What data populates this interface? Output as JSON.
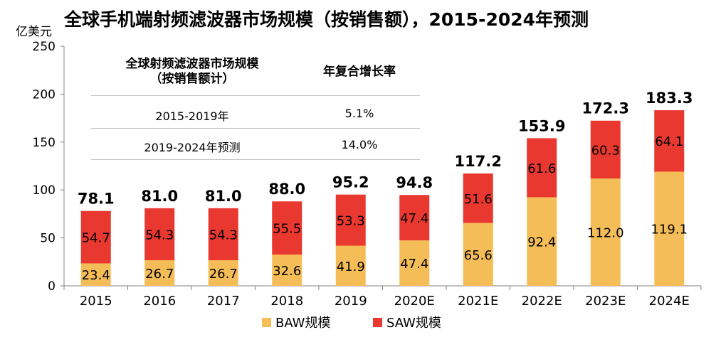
{
  "title": "全球手机端射频滤波器市场规模（按销售额），2015-2024年预测",
  "chart_data": {
    "type": "bar",
    "stacked": true,
    "ylabel": "亿美元",
    "ylim": [
      0,
      250
    ],
    "yticks": [
      0,
      50,
      100,
      150,
      200,
      250
    ],
    "categories": [
      "2015",
      "2016",
      "2017",
      "2018",
      "2019",
      "2020E",
      "2021E",
      "2022E",
      "2023E",
      "2024E"
    ],
    "series": [
      {
        "name": "BAW规模",
        "color": "#f5bd57",
        "values": [
          23.4,
          26.7,
          26.7,
          32.6,
          41.9,
          47.4,
          65.6,
          92.4,
          112.0,
          119.1
        ]
      },
      {
        "name": "SAW规模",
        "color": "#e8382f",
        "values": [
          54.7,
          54.3,
          54.3,
          55.5,
          53.3,
          47.4,
          51.6,
          61.6,
          60.3,
          64.1
        ]
      }
    ],
    "totals": [
      "78.1",
      "81.0",
      "81.0",
      "88.0",
      "95.2",
      "94.8",
      "117.2",
      "153.9",
      "172.3",
      "183.3"
    ],
    "legend_position": "bottom"
  },
  "table": {
    "headers": [
      "全球射频滤波器市场规模\n（按销售额计）",
      "年复合增长率"
    ],
    "rows": [
      [
        "2015-2019年",
        "5.1%"
      ],
      [
        "2019-2024年预测",
        "14.0%"
      ]
    ]
  }
}
